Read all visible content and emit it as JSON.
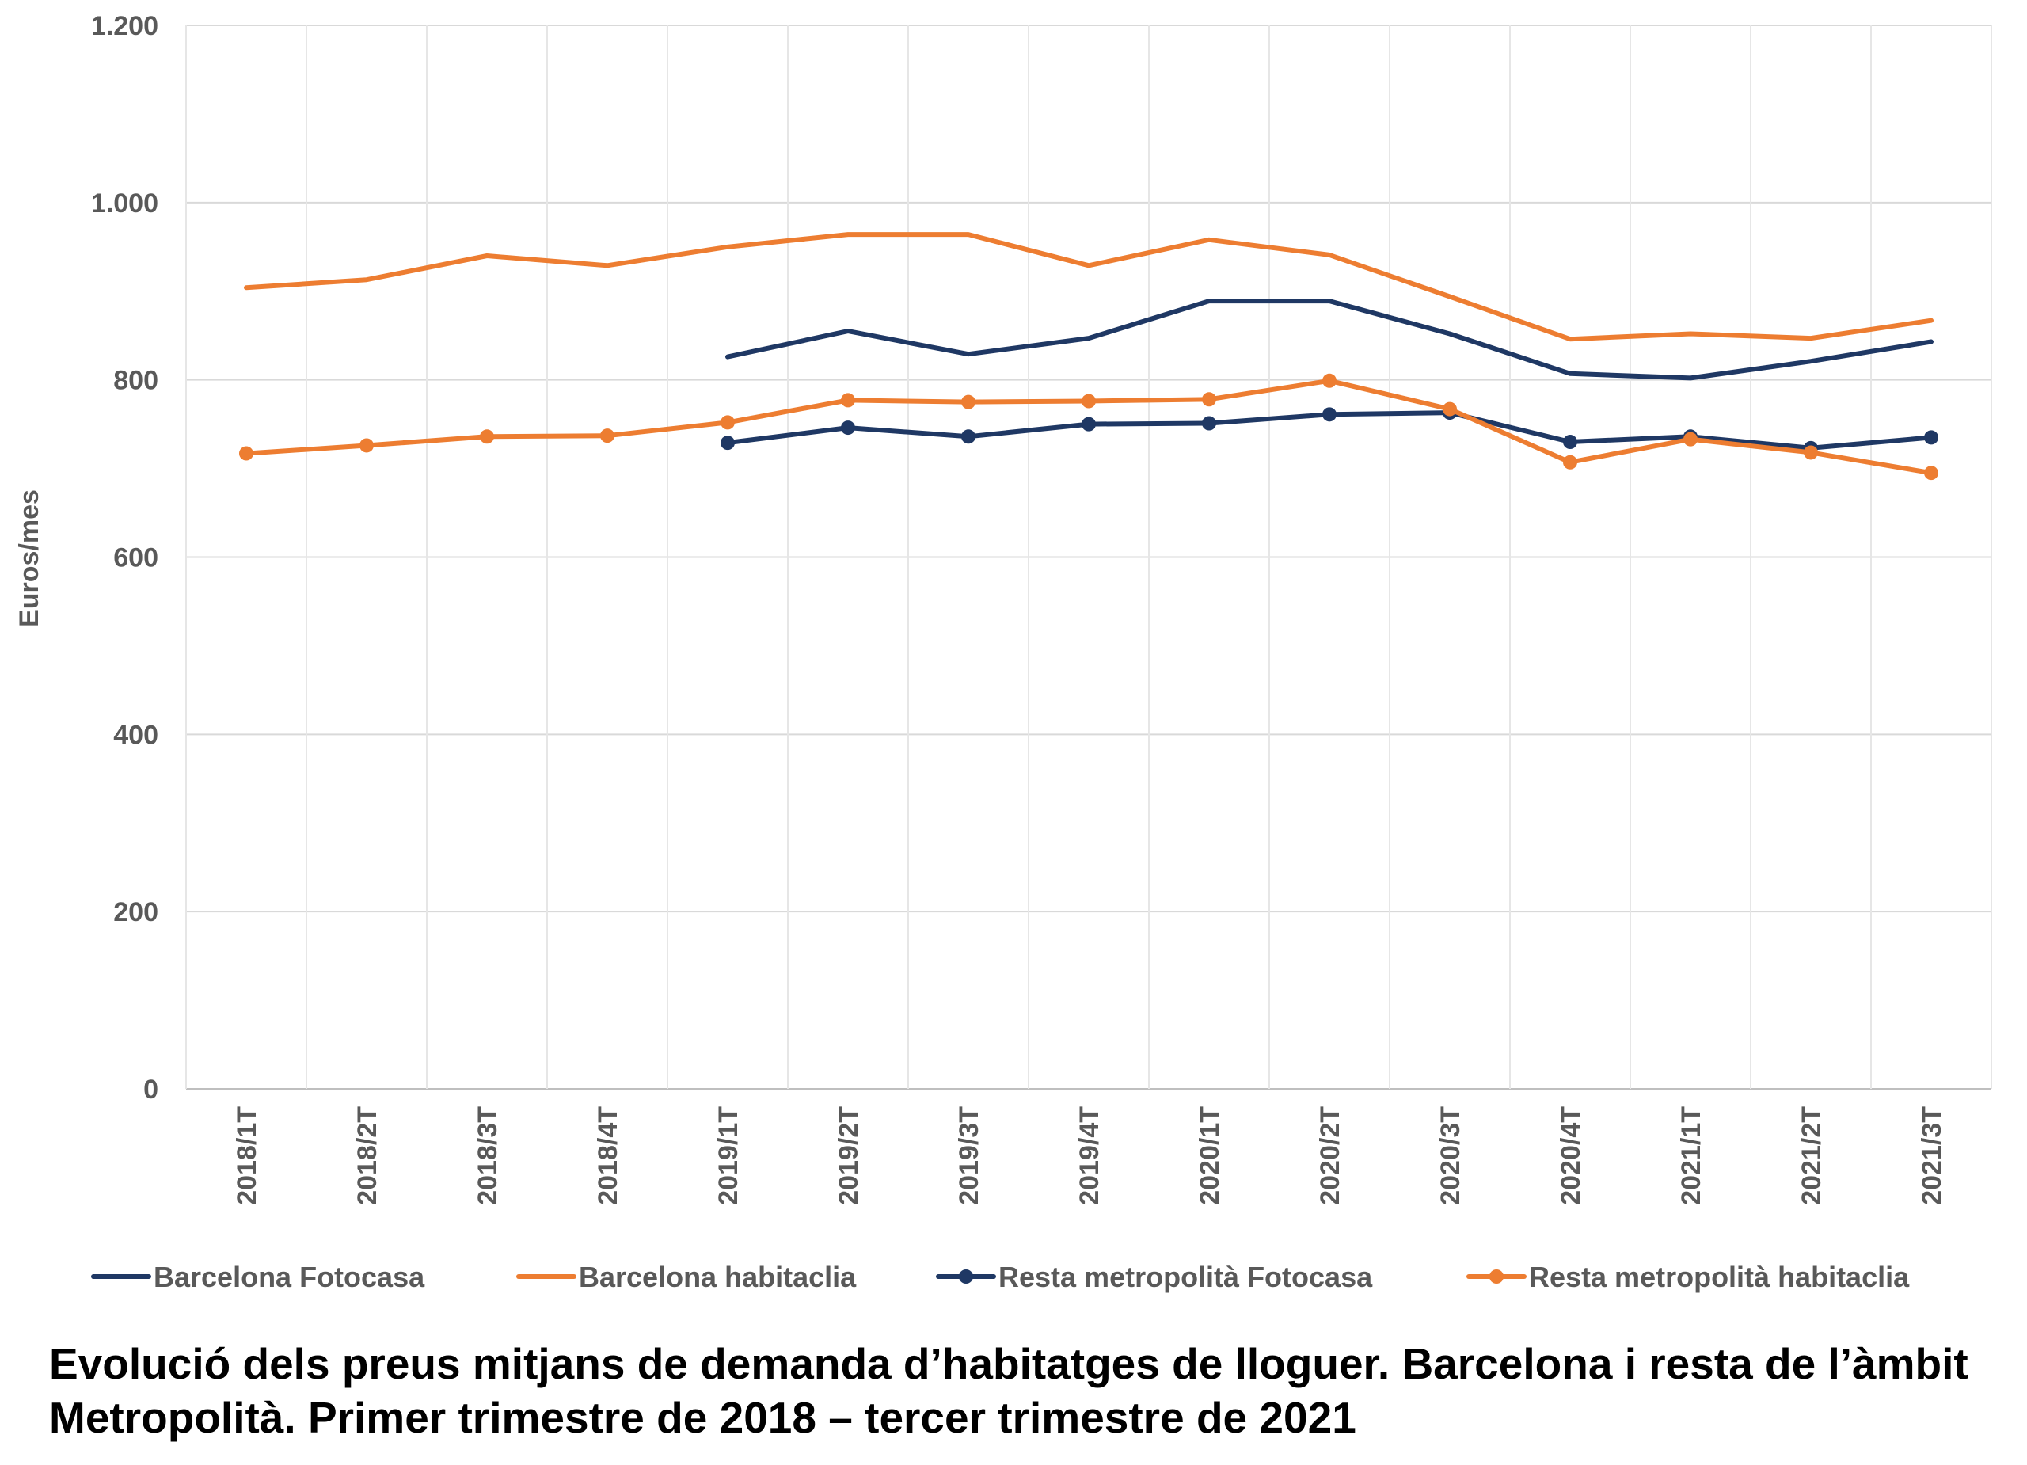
{
  "caption": "Evolució dels preus mitjans de demanda d’habitatges de lloguer. Barcelona i resta de l’àmbit Metropolità. Primer trimestre de 2018 – tercer trimestre de 2021",
  "chart_data": {
    "type": "line",
    "title": "",
    "xlabel": "",
    "ylabel": "Euros/mes",
    "ylim": [
      0,
      1200
    ],
    "yticks": [
      0,
      200,
      400,
      600,
      800,
      1000,
      1200
    ],
    "ytick_labels": [
      "0",
      "200",
      "400",
      "600",
      "800",
      "1.000",
      "1.200"
    ],
    "grid": "vertical and horizontal",
    "legend_position": "bottom",
    "categories": [
      "2018/1T",
      "2018/2T",
      "2018/3T",
      "2018/4T",
      "2019/1T",
      "2019/2T",
      "2019/3T",
      "2019/4T",
      "2020/1T",
      "2020/2T",
      "2020/3T",
      "2020/4T",
      "2021/1T",
      "2021/2T",
      "2021/3T"
    ],
    "series": [
      {
        "name": "Barcelona Fotocasa",
        "color": "#1F3864",
        "markers": false,
        "values": [
          null,
          null,
          null,
          null,
          826,
          855,
          829,
          847,
          889,
          889,
          852,
          807,
          802,
          821,
          843
        ]
      },
      {
        "name": "Barcelona habitaclia",
        "color": "#ED7D31",
        "markers": false,
        "values": [
          904,
          913,
          940,
          929,
          950,
          964,
          964,
          929,
          958,
          941,
          894,
          846,
          852,
          847,
          867
        ]
      },
      {
        "name": "Resta metropolità Fotocasa",
        "color": "#1F3864",
        "markers": true,
        "values": [
          null,
          null,
          null,
          null,
          729,
          746,
          736,
          750,
          751,
          761,
          763,
          730,
          736,
          723,
          735
        ]
      },
      {
        "name": "Resta metropolità habitaclia",
        "color": "#ED7D31",
        "markers": true,
        "values": [
          717,
          726,
          736,
          737,
          752,
          777,
          775,
          776,
          778,
          799,
          767,
          707,
          733,
          718,
          695
        ]
      }
    ]
  }
}
